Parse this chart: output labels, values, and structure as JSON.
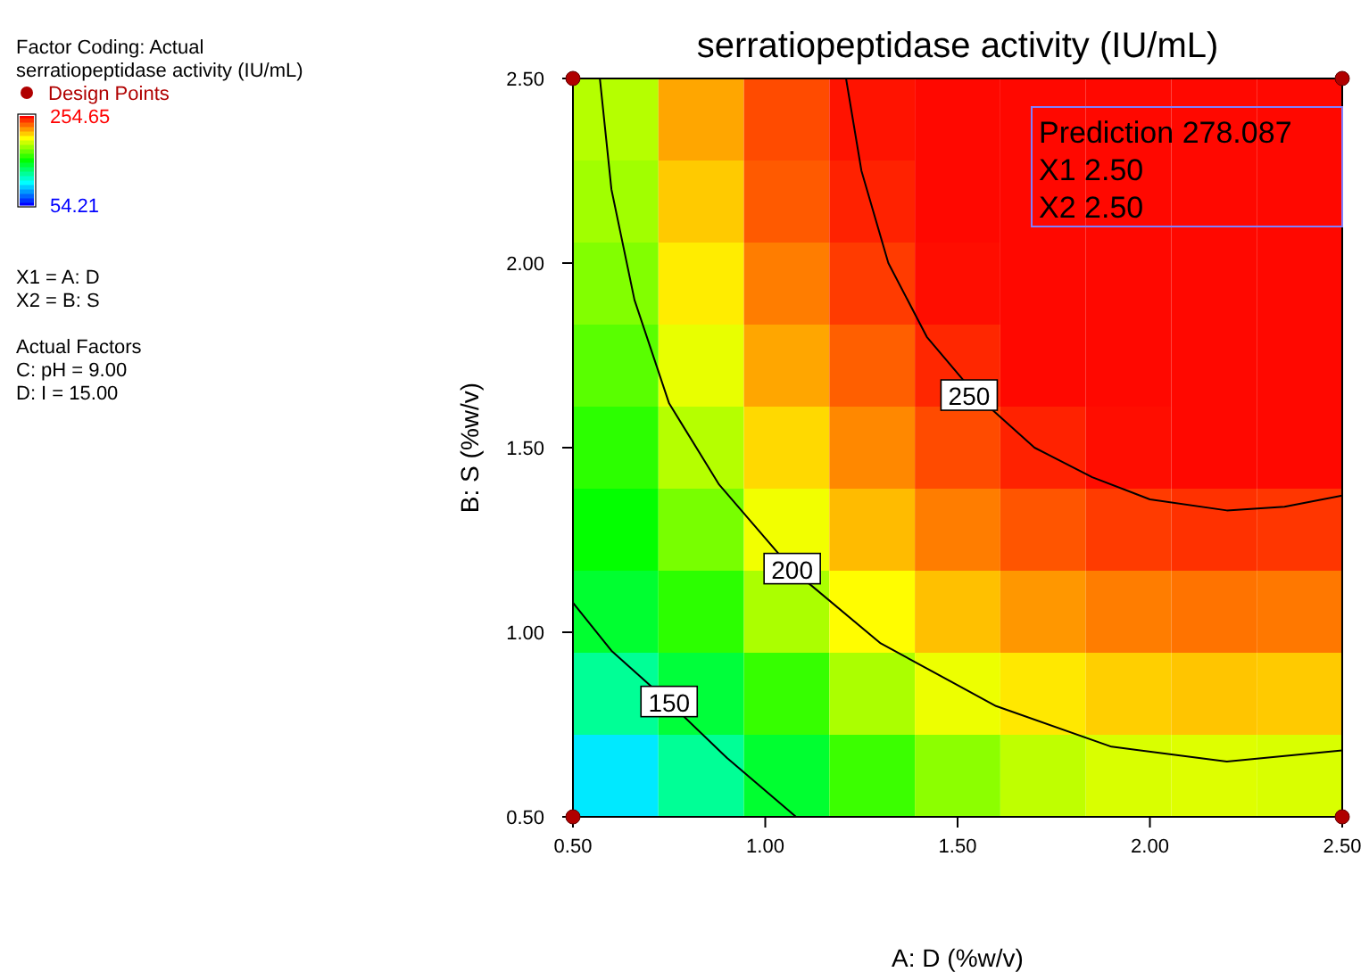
{
  "chart_data": {
    "type": "heatmap",
    "title": "serratiopeptidase activity (IU/mL)",
    "xlabel": "A: D (%w/v)",
    "ylabel": "B: S (%w/v)",
    "xlim": [
      0.5,
      2.5
    ],
    "ylim": [
      0.5,
      2.5
    ],
    "xticks": [
      {
        "value": 0.5,
        "label": "0.50"
      },
      {
        "value": 1.0,
        "label": "1.00"
      },
      {
        "value": 1.5,
        "label": "1.50"
      },
      {
        "value": 2.0,
        "label": "2.00"
      },
      {
        "value": 2.5,
        "label": "2.50"
      }
    ],
    "yticks": [
      {
        "value": 0.5,
        "label": "0.50"
      },
      {
        "value": 1.0,
        "label": "1.00"
      },
      {
        "value": 1.5,
        "label": "1.50"
      },
      {
        "value": 2.0,
        "label": "2.00"
      },
      {
        "value": 2.5,
        "label": "2.50"
      }
    ],
    "clim": [
      54.21,
      254.65
    ],
    "cticks": [
      254.65,
      54.21
    ],
    "cells": [
      [
        190,
        222,
        240,
        251,
        253,
        253,
        253,
        253,
        253
      ],
      [
        186,
        215,
        237,
        248,
        253,
        253,
        253,
        253,
        253
      ],
      [
        180,
        208,
        230,
        243,
        252,
        253,
        253,
        253,
        253
      ],
      [
        172,
        200,
        222,
        236,
        247,
        253,
        253,
        253,
        253
      ],
      [
        163,
        190,
        212,
        228,
        240,
        248,
        252,
        253,
        253
      ],
      [
        155,
        178,
        202,
        218,
        230,
        238,
        243,
        245,
        244
      ],
      [
        145,
        163,
        188,
        205,
        217,
        225,
        230,
        232,
        231
      ],
      [
        125,
        143,
        165,
        188,
        201,
        209,
        214,
        216,
        215
      ],
      [
        100,
        125,
        145,
        166,
        182,
        192,
        197,
        198,
        197
      ]
    ],
    "series": [
      {
        "type": "line",
        "color": "#000000",
        "x": [
          1.21,
          1.25,
          1.32,
          1.42,
          1.55,
          1.7,
          1.85,
          2.0,
          2.2,
          2.35,
          2.5
        ],
        "values": [
          2.5,
          2.25,
          2.0,
          1.8,
          1.64,
          1.5,
          1.42,
          1.36,
          1.33,
          1.34,
          1.37
        ]
      },
      {
        "type": "line",
        "color": "#000000",
        "x": [
          0.57,
          0.6,
          0.66,
          0.75,
          0.88,
          1.07,
          1.3,
          1.6,
          1.9,
          2.2,
          2.5
        ],
        "values": [
          2.5,
          2.2,
          1.9,
          1.62,
          1.4,
          1.17,
          0.97,
          0.8,
          0.69,
          0.65,
          0.68
        ]
      },
      {
        "type": "line",
        "color": "#000000",
        "x": [
          0.5,
          0.6,
          0.75,
          0.9,
          1.08
        ],
        "values": [
          1.08,
          0.95,
          0.81,
          0.66,
          0.5
        ]
      },
      {
        "type": "scatter",
        "name": "Design Points",
        "color": "#b00000",
        "marker": "circle",
        "x": [
          0.5,
          0.5,
          2.5,
          2.5
        ],
        "values": [
          0.5,
          2.5,
          0.5,
          2.5
        ]
      }
    ],
    "legend": "left",
    "annotations": [
      "Factor Coding: Actual",
      "serratiopeptidase activity (IU/mL)",
      "X1 = A: D",
      "X2 = B: S",
      "Actual Factors",
      "C: pH = 9.00",
      "D: I = 15.00",
      {
        "text": "250",
        "x": 1.53,
        "y": 1.64
      },
      {
        "text": "200",
        "x": 1.07,
        "y": 1.17
      },
      {
        "text": "150",
        "x": 0.75,
        "y": 0.81
      },
      {
        "text": "Prediction 278.087",
        "x": 2.5,
        "y": 2.5
      },
      "X1 2.50",
      "X2 2.50"
    ]
  }
}
